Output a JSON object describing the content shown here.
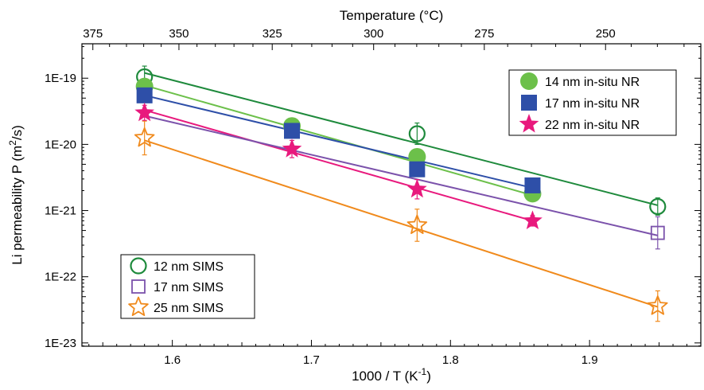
{
  "chart_data": {
    "type": "scatter",
    "title": "",
    "xlabel": "1000 / T (K",
    "xlabel_sup": "-1",
    "xlabel_end": ")",
    "ylabel": "Li permeability P (m",
    "ylabel_sup": "2",
    "ylabel_end": "/s)",
    "top_xlabel": "Temperature (°C)",
    "xlim": [
      1.535,
      1.98
    ],
    "ylim_log10": [
      -23.05,
      -18.48
    ],
    "y_scale": "log",
    "grid": false,
    "x_ticks": [
      {
        "value": 1.6,
        "label": "1.6"
      },
      {
        "value": 1.7,
        "label": "1.7"
      },
      {
        "value": 1.8,
        "label": "1.8"
      },
      {
        "value": 1.9,
        "label": "1.9"
      }
    ],
    "y_ticks": [
      {
        "exp": -19,
        "label": "1E-19"
      },
      {
        "exp": -20,
        "label": "1E-20"
      },
      {
        "exp": -21,
        "label": "1E-21"
      },
      {
        "exp": -22,
        "label": "1E-22"
      },
      {
        "exp": -23,
        "label": "1E-23"
      }
    ],
    "top_ticks": [
      {
        "celsius": 375,
        "label": "375"
      },
      {
        "celsius": 350,
        "label": "350"
      },
      {
        "celsius": 325,
        "label": "325"
      },
      {
        "celsius": 300,
        "label": "300"
      },
      {
        "celsius": 275,
        "label": "275"
      },
      {
        "celsius": 250,
        "label": "250"
      }
    ],
    "series": [
      {
        "name": "14 nm in-situ NR",
        "color": "#6cc04a",
        "marker": "circle-filled",
        "legend": "top-right",
        "x": [
          1.58,
          1.686,
          1.776,
          1.859
        ],
        "y": [
          7.5e-20,
          1.9e-20,
          6.5e-21,
          1.8e-21
        ],
        "yerr_factor": [
          1.15,
          1.15,
          1.2,
          1.2
        ],
        "fit": {
          "x": [
            1.58,
            1.859
          ],
          "y": [
            7.8e-20,
            1.7e-21
          ]
        }
      },
      {
        "name": "17 nm in-situ NR",
        "color": "#2e4fa8",
        "marker": "square-filled",
        "legend": "top-right",
        "x": [
          1.58,
          1.686,
          1.776,
          1.859
        ],
        "y": [
          5.5e-20,
          1.6e-20,
          4.2e-21,
          2.4e-21
        ],
        "yerr_factor": [
          1.15,
          1.15,
          1.2,
          1.2
        ],
        "fit": {
          "x": [
            1.58,
            1.859
          ],
          "y": [
            5.5e-20,
            2.2e-21
          ]
        }
      },
      {
        "name": "22 nm in-situ NR",
        "color": "#e8197d",
        "marker": "star-filled",
        "legend": "top-right",
        "x": [
          1.58,
          1.686,
          1.776,
          1.859
        ],
        "y": [
          3e-20,
          8.5e-21,
          2.1e-21,
          7e-22
        ],
        "yerr_factor": [
          1.3,
          1.35,
          1.4,
          1.2
        ],
        "fit": {
          "x": [
            1.58,
            1.859
          ],
          "y": [
            3.3e-20,
            7e-22
          ]
        }
      },
      {
        "name": "12 nm SIMS",
        "color": "#1e8a3c",
        "marker": "circle-open",
        "legend": "bottom-left",
        "x": [
          1.58,
          1.776,
          1.949
        ],
        "y": [
          1.05e-19,
          1.45e-20,
          1.15e-21
        ],
        "yerr_factor": [
          1.45,
          1.45,
          1.35
        ],
        "fit": {
          "x": [
            1.58,
            1.949
          ],
          "y": [
            1.2e-19,
            1.2e-21
          ]
        }
      },
      {
        "name": "17 nm SIMS",
        "color": "#7b52ab",
        "marker": "square-open",
        "legend": "bottom-left",
        "x": [
          1.949
        ],
        "y": [
          4.6e-22
        ],
        "yerr_factor": [
          1.75
        ],
        "fit": {
          "x": [
            1.58,
            1.949
          ],
          "y": [
            2.7e-20,
            4.2e-22
          ]
        }
      },
      {
        "name": "25 nm SIMS",
        "color": "#f08a1c",
        "marker": "star-open",
        "legend": "bottom-left",
        "x": [
          1.58,
          1.776,
          1.949
        ],
        "y": [
          1.25e-20,
          6e-22,
          3.6e-23
        ],
        "yerr_factor": [
          1.8,
          1.75,
          1.7
        ],
        "fit": {
          "x": [
            1.58,
            1.949
          ],
          "y": [
            1.15e-20,
            3.5e-23
          ]
        }
      }
    ]
  }
}
